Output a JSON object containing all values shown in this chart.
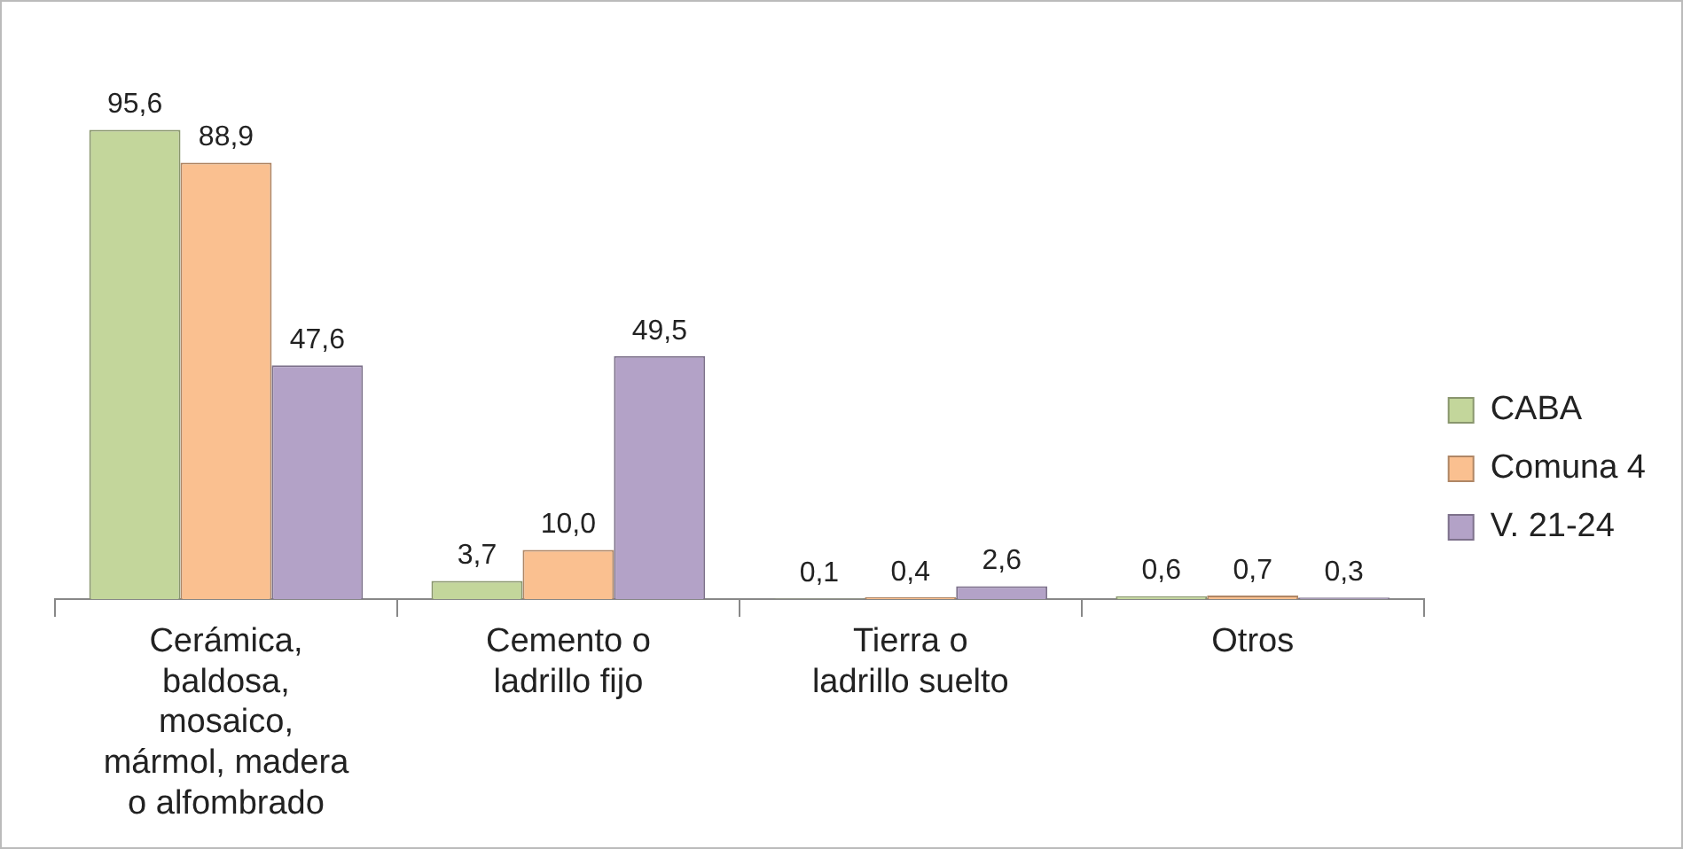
{
  "chart_data": {
    "type": "bar",
    "categories": [
      "Cerámica, baldosa, mosaico, mármol, madera o alfombrado",
      "Cemento o ladrillo fijo",
      "Tierra o ladrillo suelto",
      "Otros"
    ],
    "series": [
      {
        "name": "CABA",
        "color": "#c3d69b",
        "values": [
          95.6,
          3.7,
          0.1,
          0.6
        ],
        "value_labels": [
          "95,6",
          "3,7",
          "0,1",
          "0,6"
        ]
      },
      {
        "name": "Comuna 4",
        "color": "#fac090",
        "values": [
          88.9,
          10.0,
          0.4,
          0.7
        ],
        "value_labels": [
          "88,9",
          "10,0",
          "0,4",
          "0,7"
        ]
      },
      {
        "name": "V. 21-24",
        "color": "#b3a2c7",
        "values": [
          47.6,
          49.5,
          2.6,
          0.3
        ],
        "value_labels": [
          "47,6",
          "49,5",
          "2,6",
          "0,3"
        ]
      }
    ],
    "legend": "right"
  }
}
